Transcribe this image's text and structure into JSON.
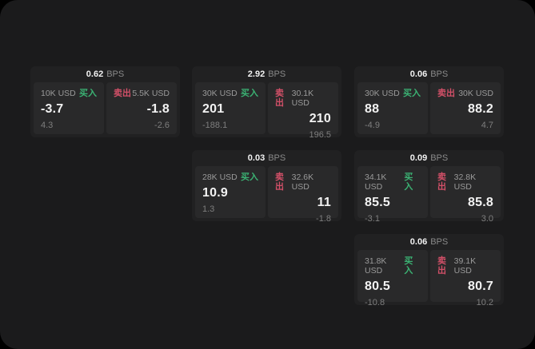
{
  "labels": {
    "bps_unit": "BPS",
    "buy": "买入",
    "sell": "卖出"
  },
  "colors": {
    "surface": "#1b1b1c",
    "card": "#212122",
    "panel": "#29292a",
    "buy_green": "#3bb273",
    "sell_red": "#d25068",
    "text_white": "#f2f2f2",
    "text_gray": "#9a9a9a",
    "text_dim": "#7e7e7e"
  },
  "cards": [
    {
      "bps": "0.62",
      "buy": {
        "amount": "10K USD",
        "price": "-3.7",
        "change": "4.3"
      },
      "sell": {
        "amount": "5.5K USD",
        "price": "-1.8",
        "change": "-2.6"
      }
    },
    {
      "bps": "2.92",
      "buy": {
        "amount": "30K USD",
        "price": "201",
        "change": "-188.1"
      },
      "sell": {
        "amount": "30.1K USD",
        "price": "210",
        "change": "196.5"
      }
    },
    {
      "bps": "0.06",
      "buy": {
        "amount": "30K USD",
        "price": "88",
        "change": "-4.9"
      },
      "sell": {
        "amount": "30K USD",
        "price": "88.2",
        "change": "4.7"
      }
    },
    {
      "bps": "0.03",
      "buy": {
        "amount": "28K USD",
        "price": "10.9",
        "change": "1.3"
      },
      "sell": {
        "amount": "32.6K USD",
        "price": "11",
        "change": "-1.8"
      }
    },
    {
      "bps": "0.09",
      "buy": {
        "amount": "34.1K USD",
        "price": "85.5",
        "change": "-3.1"
      },
      "sell": {
        "amount": "32.8K USD",
        "price": "85.8",
        "change": "3.0"
      }
    },
    {
      "bps": "0.06",
      "buy": {
        "amount": "31.8K USD",
        "price": "80.5",
        "change": "-10.8"
      },
      "sell": {
        "amount": "39.1K USD",
        "price": "80.7",
        "change": "10.2"
      }
    }
  ]
}
